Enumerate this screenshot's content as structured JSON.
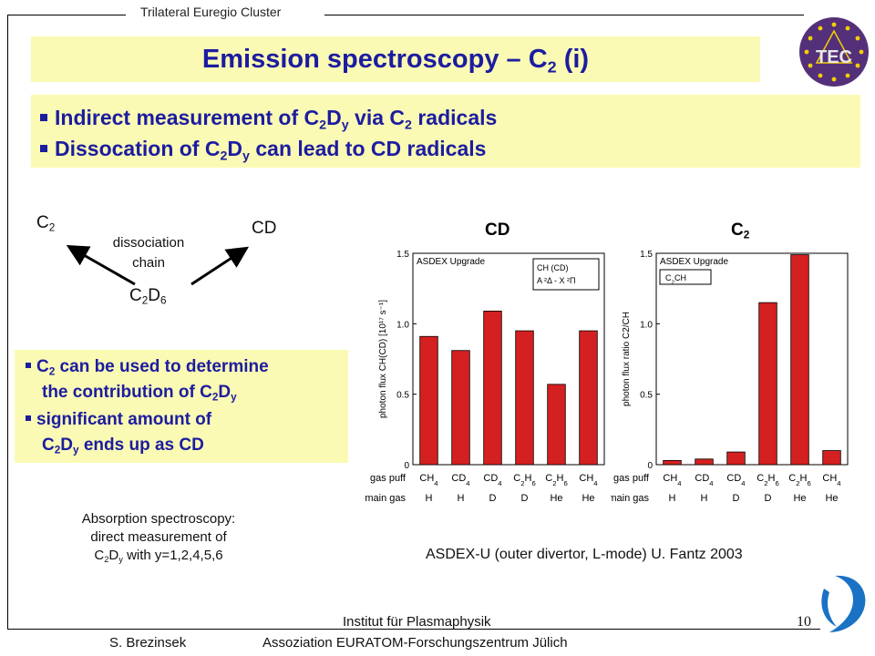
{
  "header": {
    "cluster_label": "Trilateral Euregio Cluster",
    "logo_text": "TEC"
  },
  "title": {
    "main": "Emission spectroscopy – C",
    "sub": "2",
    "suffix": " (i)"
  },
  "top_bullets": [
    {
      "a": "Indirect measurement of C",
      "s1": "2",
      "b": "D",
      "s2": "y",
      "c": " via C",
      "s3": "2",
      "d": " radicals"
    },
    {
      "a": "Dissocation of C",
      "s1": "2",
      "b": "D",
      "s2": "y",
      "c": " can lead to CD radicals"
    }
  ],
  "diagram": {
    "c2_main": "C",
    "c2_sub": "2",
    "cd": "CD",
    "chain_line1": "dissociation",
    "chain_line2": "chain",
    "parent_a": "C",
    "parent_s1": "2",
    "parent_b": "D",
    "parent_s2": "6"
  },
  "side_bullets": {
    "l1a": "C",
    "l1s": "2",
    "l1b": " can be used to determine",
    "l2a": "the contribution of C",
    "l2s1": "2",
    "l2b": "D",
    "l2s2": "y",
    "l3": "significant amount of",
    "l4a": "C",
    "l4s1": "2",
    "l4b": "D",
    "l4s2": "y",
    "l4c": " ends up as CD"
  },
  "absorption": {
    "l1": "Absorption spectroscopy:",
    "l2": "direct measurement of",
    "l3a": "C",
    "l3s1": "2",
    "l3b": "D",
    "l3s2": "y",
    "l3c": " with y=1,2,4,5,6"
  },
  "chart_data": [
    {
      "type": "bar",
      "header": "CD",
      "box_text": "ASDEX Upgrade",
      "legend_line1": "CH (CD)",
      "legend_line2": "A ²Δ - X ²Π",
      "ylabel": "photon flux CH(CD) [10¹⁷ s⁻¹]",
      "ylim": [
        0,
        1.5
      ],
      "yticks": [
        "0",
        "0.5",
        "1.0",
        "1.5"
      ],
      "gas_puff": [
        "CH4",
        "CD4",
        "CD4",
        "C2H6",
        "C2H6",
        "CH4"
      ],
      "main_gas": [
        "H",
        "H",
        "D",
        "D",
        "He",
        "He"
      ],
      "values": [
        0.91,
        0.81,
        1.09,
        0.95,
        0.57,
        0.95
      ],
      "bar_color": "#d42020"
    },
    {
      "type": "bar",
      "header": "C2",
      "box_text": "ASDEX Upgrade",
      "legend_line1": "C2 / CH",
      "legend_line2": "",
      "ylabel": "photon flux ratio C2/CH",
      "ylim": [
        0,
        1.5
      ],
      "yticks": [
        "0",
        "0.5",
        "1.0",
        "1.5"
      ],
      "gas_puff": [
        "CH4",
        "CD4",
        "CD4",
        "C2H6",
        "C2H6",
        "CH4"
      ],
      "main_gas": [
        "H",
        "H",
        "D",
        "D",
        "He",
        "He"
      ],
      "values": [
        0.03,
        0.04,
        0.09,
        1.15,
        1.49,
        0.1
      ],
      "bar_color": "#d42020"
    }
  ],
  "row_labels": {
    "gas_puff": "gas puff",
    "main_gas": "main gas"
  },
  "caption": "ASDEX-U (outer divertor, L-mode)   U. Fantz 2003",
  "footer": {
    "author": "S. Brezinsek",
    "institute_line1": "Institut für Plasmaphysik",
    "institute_line2": "Assoziation EURATOM-Forschungszentrum Jülich",
    "page_number": "10"
  },
  "colors": {
    "title_bg": "#fafab4",
    "title_text": "#1c1ca0",
    "bar": "#d42020",
    "logo_circle": "#55307a",
    "logo_accent": "#f2d000"
  }
}
